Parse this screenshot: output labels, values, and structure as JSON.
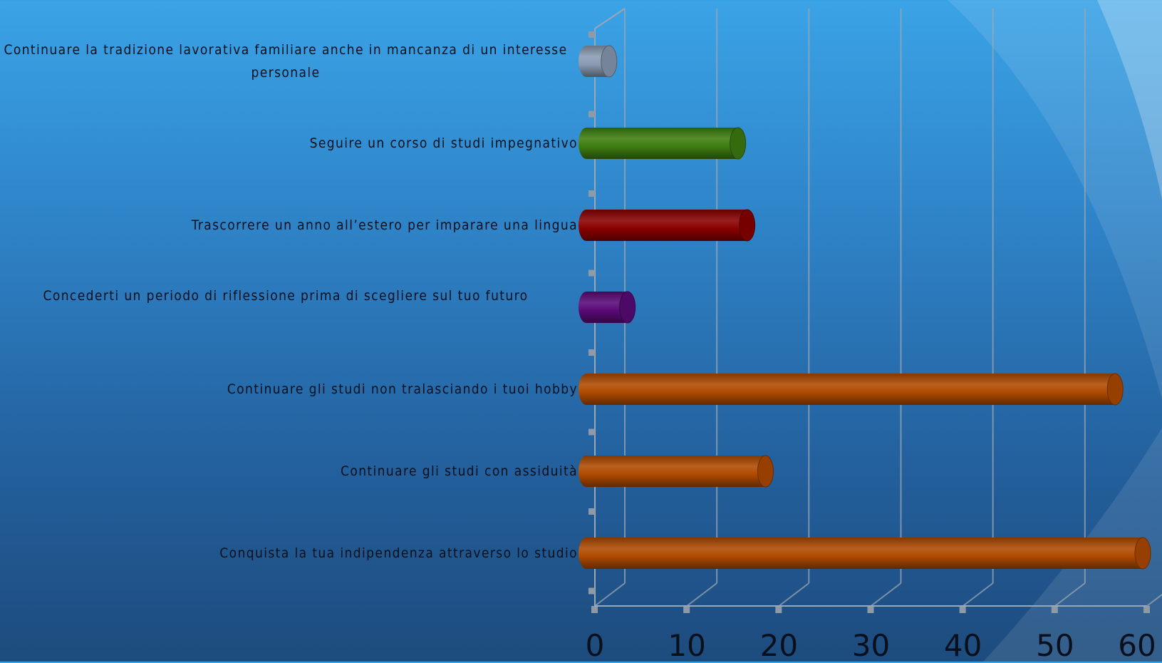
{
  "chart_data": {
    "type": "bar",
    "orientation": "horizontal",
    "style": "3d-cylinder",
    "title": "",
    "xlabel": "",
    "ylabel": "",
    "xlim": [
      0,
      60
    ],
    "ticks": [
      "0",
      "10",
      "20",
      "30",
      "40",
      "50",
      "60"
    ],
    "grid": true,
    "legend": "none",
    "categories": [
      "Continuare la tradizione lavorativa familiare anche in mancanza di un interesse personale",
      "Seguire un corso di studi impegnativo",
      "Trascorrere un anno all’estero per imparare una lingua",
      "Concederti un periodo di riflessione prima di scegliere sul tuo futuro",
      "Continuare gli studi non tralasciando i tuoi hobby",
      "Continuare gli studi con assiduità",
      "Conquista la tua indipendenza attraverso lo studio"
    ],
    "values": [
      2,
      16,
      17,
      4,
      57,
      19,
      60
    ],
    "colors": [
      "#8a9bb3",
      "#3f7d10",
      "#8b0000",
      "#5a0a78",
      "#b04a00",
      "#b04a00",
      "#b04a00"
    ]
  }
}
